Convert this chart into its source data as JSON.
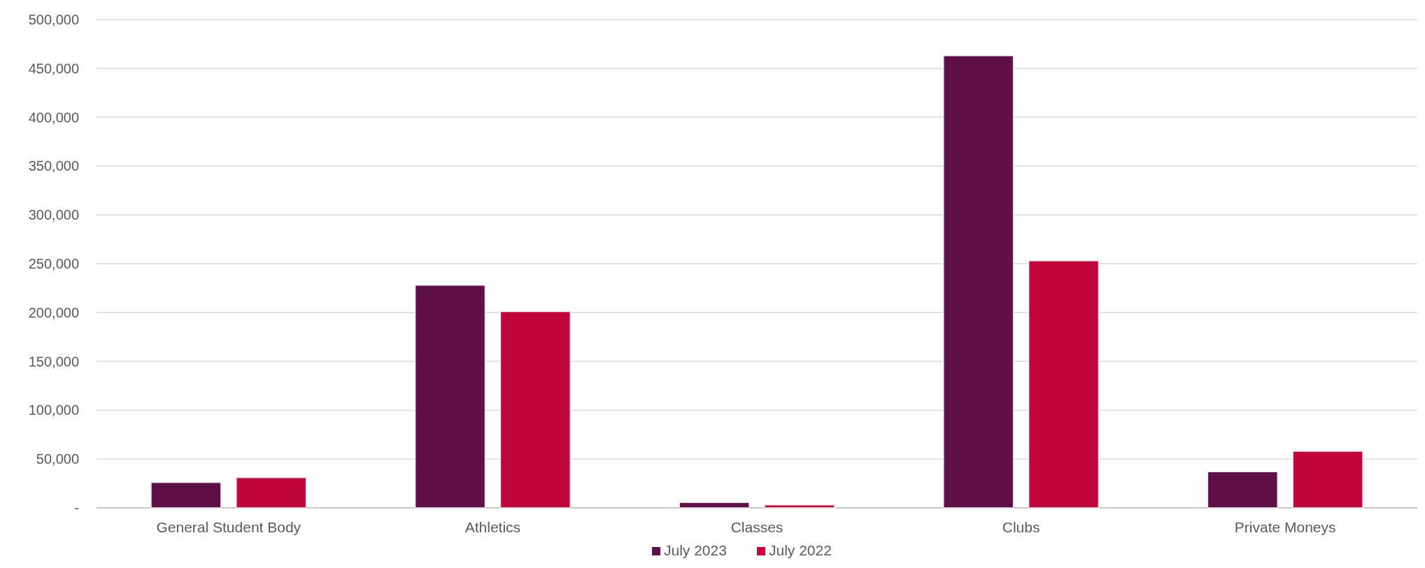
{
  "chart_data": {
    "type": "bar",
    "categories": [
      "General Student Body",
      "Athletics",
      "Classes",
      "Clubs",
      "Private Moneys"
    ],
    "series": [
      {
        "name": "July 2023",
        "color": "#5e0f48",
        "values": [
          26000,
          228000,
          5500,
          463000,
          37000
        ]
      },
      {
        "name": "July 2022",
        "color": "#c0063a",
        "values": [
          31000,
          201000,
          3000,
          253000,
          58000
        ]
      }
    ],
    "ylim": [
      0,
      500000
    ],
    "yticks": [
      {
        "value": 0,
        "label": "-"
      },
      {
        "value": 50000,
        "label": "50,000"
      },
      {
        "value": 100000,
        "label": "100,000"
      },
      {
        "value": 150000,
        "label": "150,000"
      },
      {
        "value": 200000,
        "label": "200,000"
      },
      {
        "value": 250000,
        "label": "250,000"
      },
      {
        "value": 300000,
        "label": "300,000"
      },
      {
        "value": 350000,
        "label": "350,000"
      },
      {
        "value": 400000,
        "label": "400,000"
      },
      {
        "value": 450000,
        "label": "450,000"
      },
      {
        "value": 500000,
        "label": "500,000"
      }
    ],
    "grid": "y",
    "legend": "bottom"
  }
}
